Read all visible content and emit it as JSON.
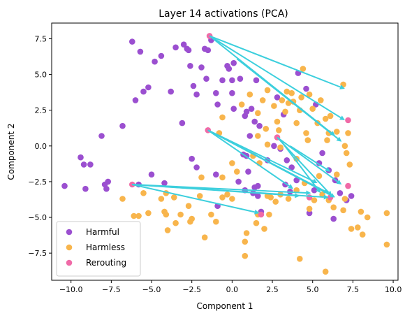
{
  "chart_data": {
    "type": "scatter",
    "title": "Layer 14 activations (PCA)",
    "xlabel": "Component 1",
    "ylabel": "Component 2",
    "xlim": [
      -11.2,
      10.3
    ],
    "ylim": [
      -9.4,
      8.6
    ],
    "xticks": [
      -10.0,
      -7.5,
      -5.0,
      -2.5,
      0.0,
      2.5,
      5.0,
      7.5,
      10.0
    ],
    "yticks": [
      -7.5,
      -5.0,
      -2.5,
      0.0,
      2.5,
      5.0,
      7.5
    ],
    "grid": false,
    "legend_position": "lower-left",
    "series": [
      {
        "name": "Harmful",
        "color": "#9b4fd0",
        "points": [
          [
            -10.4,
            -2.8
          ],
          [
            -9.4,
            -0.8
          ],
          [
            -9.2,
            -1.3
          ],
          [
            -8.8,
            -1.3
          ],
          [
            -9.1,
            -3.0
          ],
          [
            -8.1,
            0.7
          ],
          [
            -7.9,
            -2.7
          ],
          [
            -7.8,
            -3.0
          ],
          [
            -7.7,
            -2.5
          ],
          [
            -6.8,
            1.4
          ],
          [
            -6.2,
            7.3
          ],
          [
            -6.0,
            3.2
          ],
          [
            -5.7,
            6.6
          ],
          [
            -5.5,
            3.8
          ],
          [
            -5.2,
            4.1
          ],
          [
            -4.8,
            5.9
          ],
          [
            -4.4,
            6.3
          ],
          [
            -3.8,
            3.8
          ],
          [
            -3.5,
            6.9
          ],
          [
            -3.0,
            7.1
          ],
          [
            -2.8,
            6.8
          ],
          [
            -2.7,
            6.7
          ],
          [
            -2.4,
            4.2
          ],
          [
            -2.2,
            3.6
          ],
          [
            -2.6,
            5.6
          ],
          [
            -2.5,
            -0.9
          ],
          [
            -1.9,
            5.5
          ],
          [
            -1.7,
            6.8
          ],
          [
            -1.5,
            6.7
          ],
          [
            -1.3,
            7.4
          ],
          [
            -1.6,
            4.7
          ],
          [
            -1.0,
            3.7
          ],
          [
            -0.9,
            2.9
          ],
          [
            -0.6,
            4.6
          ],
          [
            -0.3,
            5.6
          ],
          [
            -0.2,
            5.4
          ],
          [
            0.1,
            5.8
          ],
          [
            0.0,
            4.6
          ],
          [
            0.0,
            3.7
          ],
          [
            0.1,
            2.6
          ],
          [
            0.5,
            4.7
          ],
          [
            0.8,
            2.1
          ],
          [
            0.9,
            2.4
          ],
          [
            1.1,
            0.7
          ],
          [
            1.2,
            2.6
          ],
          [
            1.4,
            1.7
          ],
          [
            1.5,
            4.6
          ],
          [
            1.7,
            1.4
          ],
          [
            -3.1,
            1.6
          ],
          [
            -1.0,
            -2.0
          ],
          [
            0.9,
            -0.7
          ],
          [
            1.0,
            -1.8
          ],
          [
            0.8,
            -3.1
          ],
          [
            1.3,
            -3.3
          ],
          [
            1.6,
            -3.5
          ],
          [
            1.6,
            -2.8
          ],
          [
            1.8,
            -4.6
          ],
          [
            3.3,
            -2.7
          ],
          [
            3.6,
            -3.2
          ],
          [
            4.8,
            -4.7
          ],
          [
            5.1,
            -3.1
          ],
          [
            6.3,
            -5.1
          ],
          [
            7.1,
            -3.8
          ],
          [
            7.4,
            -3.5
          ],
          [
            -5.8,
            -2.7
          ],
          [
            -5.0,
            -2.0
          ],
          [
            -4.2,
            -2.6
          ],
          [
            -2.2,
            -1.5
          ],
          [
            -0.9,
            -4.2
          ],
          [
            0.4,
            -2.5
          ],
          [
            0.7,
            -0.6
          ],
          [
            1.4,
            -2.9
          ],
          [
            2.2,
            -1.0
          ],
          [
            2.6,
            0.0
          ],
          [
            2.8,
            3.4
          ],
          [
            3.0,
            -0.2
          ],
          [
            3.4,
            -1.0
          ],
          [
            3.7,
            -1.5
          ],
          [
            3.2,
            2.2
          ],
          [
            4.1,
            5.1
          ],
          [
            4.0,
            -2.4
          ],
          [
            4.6,
            4.0
          ],
          [
            5.2,
            2.9
          ],
          [
            5.4,
            -1.2
          ],
          [
            5.6,
            -0.5
          ],
          [
            6.0,
            -1.7
          ],
          [
            6.4,
            -2.4
          ],
          [
            6.7,
            -3.3
          ]
        ]
      },
      {
        "name": "Harmless",
        "color": "#f8b54c",
        "points": [
          [
            -6.8,
            -3.7
          ],
          [
            -6.1,
            -4.9
          ],
          [
            -5.8,
            -4.9
          ],
          [
            -5.5,
            -3.3
          ],
          [
            -5.2,
            -4.7
          ],
          [
            -4.4,
            -3.7
          ],
          [
            -4.2,
            -4.6
          ],
          [
            -4.1,
            -3.3
          ],
          [
            -4.1,
            -4.8
          ],
          [
            -4.0,
            -5.9
          ],
          [
            -3.6,
            -3.6
          ],
          [
            -3.5,
            -5.4
          ],
          [
            -3.2,
            -4.8
          ],
          [
            -2.5,
            -5.1
          ],
          [
            -2.6,
            -5.3
          ],
          [
            -2.7,
            -4.2
          ],
          [
            -2.0,
            -3.5
          ],
          [
            -1.9,
            -2.2
          ],
          [
            -1.7,
            -6.4
          ],
          [
            -1.3,
            -4.8
          ],
          [
            -1.0,
            -5.3
          ],
          [
            -0.6,
            -2.2
          ],
          [
            -0.6,
            -3.6
          ],
          [
            -0.3,
            -3.4
          ],
          [
            0.0,
            -1.2
          ],
          [
            0.0,
            -3.7
          ],
          [
            0.3,
            -1.8
          ],
          [
            0.8,
            -6.7
          ],
          [
            0.8,
            -7.7
          ],
          [
            0.9,
            -6.1
          ],
          [
            1.5,
            -5.4
          ],
          [
            1.6,
            -4.8
          ],
          [
            2.0,
            -5.8
          ],
          [
            2.2,
            -3.5
          ],
          [
            2.3,
            -4.8
          ],
          [
            2.4,
            -3.6
          ],
          [
            2.7,
            -3.9
          ],
          [
            3.0,
            -3.4
          ],
          [
            3.5,
            -3.7
          ],
          [
            4.0,
            -3.1
          ],
          [
            4.5,
            -2.6
          ],
          [
            4.8,
            -4.4
          ],
          [
            5.1,
            -3.8
          ],
          [
            5.6,
            -3.4
          ],
          [
            6.0,
            -3.8
          ],
          [
            6.3,
            -4.3
          ],
          [
            6.9,
            -4.5
          ],
          [
            7.0,
            -3.7
          ],
          [
            7.4,
            -5.8
          ],
          [
            7.8,
            -5.7
          ],
          [
            8.0,
            -4.6
          ],
          [
            8.4,
            -5.0
          ],
          [
            8.1,
            -6.2
          ],
          [
            9.6,
            -4.7
          ],
          [
            9.6,
            -6.9
          ],
          [
            5.8,
            -8.8
          ],
          [
            4.2,
            -7.9
          ],
          [
            -0.8,
            0.9
          ],
          [
            -0.6,
            2.0
          ],
          [
            0.6,
            2.9
          ],
          [
            1.1,
            3.6
          ],
          [
            1.6,
            0.7
          ],
          [
            1.6,
            2.3
          ],
          [
            1.9,
            3.2
          ],
          [
            2.1,
            1.2
          ],
          [
            2.2,
            0.1
          ],
          [
            2.2,
            3.9
          ],
          [
            2.6,
            2.8
          ],
          [
            2.8,
            1.7
          ],
          [
            3.1,
            3.2
          ],
          [
            3.3,
            2.4
          ],
          [
            3.5,
            3.0
          ],
          [
            3.7,
            3.7
          ],
          [
            3.8,
            3.1
          ],
          [
            4.0,
            1.6
          ],
          [
            4.2,
            2.5
          ],
          [
            4.3,
            3.4
          ],
          [
            4.4,
            5.4
          ],
          [
            4.6,
            0.9
          ],
          [
            4.8,
            3.6
          ],
          [
            5.0,
            2.6
          ],
          [
            5.3,
            1.6
          ],
          [
            5.5,
            3.2
          ],
          [
            5.8,
            1.9
          ],
          [
            6.0,
            0.9
          ],
          [
            6.1,
            2.1
          ],
          [
            6.5,
            1.0
          ],
          [
            6.9,
            4.3
          ],
          [
            7.0,
            0.0
          ],
          [
            7.1,
            -0.5
          ],
          [
            7.2,
            0.9
          ],
          [
            7.3,
            -1.3
          ],
          [
            6.5,
            -2.0
          ],
          [
            5.4,
            -2.1
          ],
          [
            4.0,
            -0.9
          ],
          [
            3.0,
            -0.1
          ],
          [
            1.7,
            -1.2
          ],
          [
            1.3,
            -0.7
          ],
          [
            2.9,
            1.1
          ],
          [
            3.4,
            3.8
          ],
          [
            4.7,
            0.4
          ],
          [
            5.9,
            0.4
          ]
        ]
      },
      {
        "name": "Rerouting",
        "color": "#f06aa7",
        "points": [
          [
            -1.4,
            7.7
          ],
          [
            -1.5,
            1.1
          ],
          [
            -6.2,
            -2.7
          ],
          [
            1.8,
            -4.8
          ],
          [
            2.8,
            0.6
          ],
          [
            4.8,
            -3.6
          ],
          [
            6.1,
            -3.6
          ],
          [
            7.2,
            1.8
          ],
          [
            7.2,
            -2.8
          ]
        ]
      }
    ],
    "arrows": [
      [
        [
          -1.4,
          7.7
        ],
        [
          7.0,
          1.8
        ]
      ],
      [
        [
          -1.4,
          7.7
        ],
        [
          7.0,
          4.0
        ]
      ],
      [
        [
          -1.4,
          7.7
        ],
        [
          6.4,
          0.7
        ]
      ],
      [
        [
          0.3,
          6.1
        ],
        [
          6.8,
          0.3
        ]
      ],
      [
        [
          -1.5,
          1.1
        ],
        [
          5.3,
          -2.6
        ]
      ],
      [
        [
          -1.5,
          1.1
        ],
        [
          6.0,
          -3.3
        ]
      ],
      [
        [
          -1.5,
          1.1
        ],
        [
          6.4,
          -3.6
        ]
      ],
      [
        [
          -1.5,
          1.1
        ],
        [
          3.8,
          -3.0
        ]
      ],
      [
        [
          2.8,
          0.6
        ],
        [
          6.8,
          -2.7
        ]
      ],
      [
        [
          2.8,
          0.6
        ],
        [
          6.2,
          -3.5
        ]
      ],
      [
        [
          3.0,
          0.4
        ],
        [
          5.5,
          -3.3
        ]
      ],
      [
        [
          3.6,
          0.0
        ],
        [
          6.1,
          -1.8
        ]
      ],
      [
        [
          -6.2,
          -2.7
        ],
        [
          4.2,
          -3.5
        ]
      ],
      [
        [
          -6.2,
          -2.7
        ],
        [
          1.7,
          -4.7
        ]
      ],
      [
        [
          -6.2,
          -2.7
        ],
        [
          6.0,
          -3.6
        ]
      ],
      [
        [
          -6.2,
          -2.7
        ],
        [
          4.9,
          -3.3
        ]
      ]
    ],
    "arrow_color": "#3ccfdd"
  }
}
